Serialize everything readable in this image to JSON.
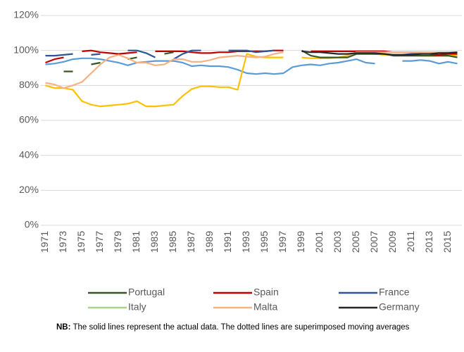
{
  "chart_data": {
    "type": "line",
    "categories": [
      "1971",
      null,
      "1973",
      null,
      "1975",
      null,
      "1977",
      null,
      "1979",
      null,
      "1981",
      null,
      "1983",
      null,
      "1985",
      null,
      "1987",
      null,
      "1989",
      null,
      "1991",
      null,
      "1993",
      null,
      "1995",
      null,
      "1997",
      null,
      "1999",
      null,
      "2001",
      null,
      "2003",
      null,
      "2005",
      null,
      "2007",
      null,
      "2009",
      null,
      "2011",
      null,
      "2013",
      null,
      "2015",
      null
    ],
    "ylim": [
      0,
      120
    ],
    "yticks": [
      {
        "value": 0,
        "label": "0%"
      },
      {
        "value": 20,
        "label": "20%"
      },
      {
        "value": 40,
        "label": "40%"
      },
      {
        "value": 60,
        "label": "60%"
      },
      {
        "value": 80,
        "label": "80%"
      },
      {
        "value": 100,
        "label": "100%"
      },
      {
        "value": 120,
        "label": "120%"
      }
    ],
    "grid": true,
    "legend": "bottom",
    "series": [
      {
        "color": "#5b9bd5",
        "values": [
          92,
          92.5,
          93.5,
          95,
          95.5,
          95.5,
          95,
          94,
          93,
          91.5,
          93,
          93.5,
          94,
          94,
          94,
          93,
          91,
          91.5,
          91,
          91,
          90.5,
          89,
          87,
          86.5,
          87,
          86.5,
          87,
          90.5,
          91.5,
          92,
          91.5,
          92.5,
          93,
          94,
          95,
          93,
          92.5,
          null,
          null,
          94,
          94,
          94.5,
          94,
          92.5,
          93.5,
          92.5
        ]
      },
      {
        "color": "#ffc000",
        "values": [
          80,
          78.5,
          78.5,
          77.5,
          71,
          69,
          68,
          68.5,
          69,
          69.5,
          71,
          68,
          68,
          68.5,
          69,
          74,
          78,
          79.5,
          79.5,
          79,
          79,
          77.5,
          98,
          96.5,
          96,
          96,
          96,
          null,
          96,
          95.5,
          95.5,
          95.5,
          96,
          97,
          99,
          98.5,
          98,
          97.5,
          97.5,
          97.5,
          97.5,
          97,
          97,
          97,
          97,
          97
        ]
      },
      {
        "name": "Portugal",
        "color": "#375623",
        "values": [
          null,
          null,
          88,
          88,
          null,
          92,
          93,
          null,
          null,
          95,
          96,
          null,
          null,
          98,
          99,
          null,
          null,
          null,
          null,
          null,
          null,
          null,
          null,
          null,
          null,
          null,
          null,
          null,
          100,
          97,
          96,
          96,
          96,
          96,
          98,
          98,
          98,
          98,
          97,
          97,
          97,
          97,
          97,
          97,
          97,
          96
        ]
      },
      {
        "name": "Spain",
        "color": "#c00000",
        "values": [
          93,
          95,
          96,
          null,
          99.5,
          100,
          99,
          98.5,
          98,
          98.5,
          99,
          null,
          99.5,
          99.5,
          99.5,
          99.5,
          99,
          98.5,
          98.5,
          99,
          99,
          99.5,
          99.5,
          99.5,
          99.5,
          100,
          100,
          null,
          null,
          99.5,
          99.5,
          99.5,
          99.5,
          99.5,
          99.5,
          99.5,
          99.5,
          99.5,
          99,
          99,
          99,
          99,
          98,
          97.5,
          98,
          98
        ]
      },
      {
        "name": "France",
        "color": "#2f5597",
        "values": [
          97,
          97,
          97.5,
          98,
          null,
          97.5,
          98,
          null,
          null,
          100,
          100,
          98.5,
          96,
          null,
          95,
          98,
          100,
          100,
          null,
          null,
          100,
          100,
          100,
          99,
          99.5,
          100,
          null,
          null,
          null,
          null,
          null,
          null,
          null,
          null,
          null,
          null,
          null,
          null,
          null,
          97.5,
          98,
          98,
          98.5,
          98.5,
          99,
          99
        ]
      },
      {
        "name": "Italy",
        "color": "#a9d18e",
        "values": [
          null,
          null,
          null,
          null,
          null,
          null,
          null,
          null,
          null,
          null,
          null,
          null,
          null,
          null,
          null,
          null,
          null,
          null,
          null,
          null,
          null,
          null,
          null,
          null,
          null,
          null,
          null,
          null,
          null,
          null,
          null,
          null,
          null,
          null,
          99,
          99,
          99,
          99,
          99,
          99,
          99,
          99,
          99,
          99,
          99,
          99
        ]
      },
      {
        "name": "Malta",
        "color": "#f4b183",
        "values": [
          81.5,
          80.5,
          78.5,
          80,
          82,
          87,
          92,
          96,
          97.5,
          95.5,
          93,
          93,
          91.5,
          92,
          95,
          95,
          93.5,
          93.5,
          94.5,
          96,
          96.5,
          97,
          96.5,
          96,
          96.5,
          98,
          99,
          null,
          null,
          null,
          null,
          null,
          null,
          97,
          99,
          99,
          99,
          99,
          99,
          99,
          99,
          99,
          98.5,
          98.5,
          99,
          99
        ]
      },
      {
        "name": "Germany",
        "color": "#262626",
        "values": [
          null,
          null,
          null,
          null,
          null,
          null,
          null,
          null,
          null,
          null,
          null,
          null,
          null,
          null,
          null,
          null,
          null,
          null,
          null,
          null,
          null,
          null,
          null,
          null,
          null,
          null,
          null,
          null,
          99.5,
          99,
          99,
          98.5,
          98,
          98,
          98.5,
          98.5,
          98.5,
          98,
          97.5,
          97.5,
          97.5,
          98,
          98,
          98.5,
          98.5,
          99
        ]
      }
    ],
    "note": {
      "label": "NB:",
      "text": "The solid lines represent the actual data. The dotted lines are superimposed moving averages"
    }
  }
}
